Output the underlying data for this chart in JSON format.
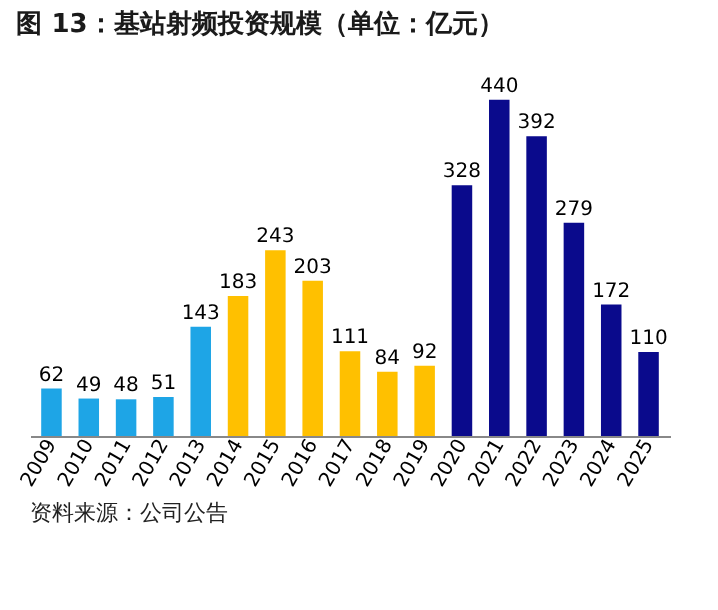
{
  "chart_data": {
    "type": "bar",
    "title": "图 13：基站射频投资规模（单位：亿元）",
    "categories": [
      "2009",
      "2010",
      "2011",
      "2012",
      "2013",
      "2014",
      "2015",
      "2016",
      "2017",
      "2018",
      "2019",
      "2020",
      "2021",
      "2022",
      "2023",
      "2024",
      "2025"
    ],
    "values": [
      62,
      49,
      48,
      51,
      143,
      183,
      243,
      203,
      111,
      84,
      92,
      328,
      440,
      392,
      279,
      172,
      110
    ],
    "colors": [
      "#1ea5e6",
      "#1ea5e6",
      "#1ea5e6",
      "#1ea5e6",
      "#1ea5e6",
      "#ffc000",
      "#ffc000",
      "#ffc000",
      "#ffc000",
      "#ffc000",
      "#ffc000",
      "#0a0a8c",
      "#0a0a8c",
      "#0a0a8c",
      "#0a0a8c",
      "#0a0a8c",
      "#0a0a8c"
    ],
    "data_labels": true,
    "grid": false,
    "legend": false,
    "annotations": [
      "资料来源：公司公告"
    ]
  }
}
